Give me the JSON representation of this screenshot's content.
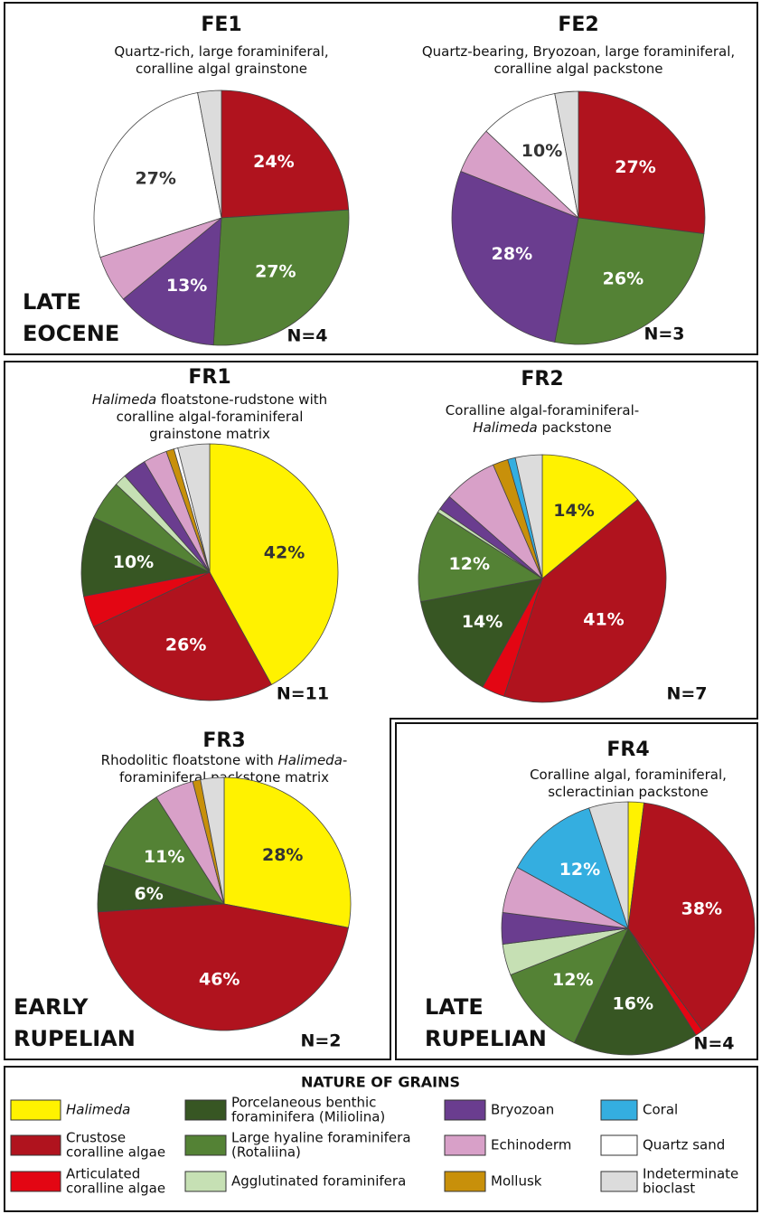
{
  "legend": {
    "title": "NATURE OF GRAINS",
    "items": [
      {
        "label": [
          "Halimeda"
        ],
        "italic": true,
        "color": "#fff200"
      },
      {
        "label": [
          "Crustose",
          "coralline algae"
        ],
        "color": "#b0131e"
      },
      {
        "label": [
          "Articulated",
          "coralline algae"
        ],
        "color": "#e30613"
      },
      {
        "label": [
          "Porcelaneous benthic",
          "foraminifera (Miliolina)"
        ],
        "color": "#375623"
      },
      {
        "label": [
          "Large hyaline foraminifera",
          "(Rotaliina)"
        ],
        "color": "#548235"
      },
      {
        "label": [
          "Agglutinated foraminifera"
        ],
        "color": "#c6e0b4"
      },
      {
        "label": [
          "Bryozoan"
        ],
        "color": "#6a3d8f"
      },
      {
        "label": [
          "Echinoderm"
        ],
        "color": "#d8a0c8"
      },
      {
        "label": [
          "Mollusk"
        ],
        "color": "#c8900a"
      },
      {
        "label": [
          "Coral"
        ],
        "color": "#34aee0"
      },
      {
        "label": [
          "Quartz sand"
        ],
        "color": "#ffffff"
      },
      {
        "label": [
          "Indeterminate",
          "bioclast"
        ],
        "color": "#dcdcdc"
      }
    ]
  },
  "chart_data": [
    {
      "type": "pie",
      "title": "FE1",
      "subtitle": [
        [
          {
            "text": "Quartz-rich, large foraminiferal,"
          }
        ],
        [
          {
            "text": "coralline algal grainstone"
          }
        ]
      ],
      "note": "N=4",
      "era": [
        "LATE",
        "EOCENE"
      ],
      "values": [
        null,
        24,
        null,
        null,
        27,
        null,
        13,
        6,
        null,
        null,
        27,
        3
      ],
      "value_labels": [
        null,
        "24%",
        null,
        null,
        "27%",
        null,
        "13%",
        null,
        null,
        null,
        "27%",
        null
      ]
    },
    {
      "type": "pie",
      "title": "FE2",
      "subtitle": [
        [
          {
            "text": "Quartz-bearing, Bryozoan, large foraminiferal,"
          }
        ],
        [
          {
            "text": "coralline algal  packstone"
          }
        ]
      ],
      "note": "N=3",
      "values": [
        null,
        27,
        null,
        null,
        26,
        null,
        28,
        6,
        null,
        null,
        10,
        3
      ],
      "value_labels": [
        null,
        "27%",
        null,
        null,
        "26%",
        null,
        "28%",
        null,
        null,
        null,
        "10%",
        null
      ]
    },
    {
      "type": "pie",
      "title": "FR1",
      "subtitle": [
        [
          {
            "text": "Halimeda",
            "italic": true
          },
          {
            "text": " floatstone-rudstone with"
          }
        ],
        [
          {
            "text": "coralline algal-foraminiferal"
          }
        ],
        [
          {
            "text": "grainstone matrix"
          }
        ]
      ],
      "note": "N=11",
      "values": [
        42,
        26,
        4,
        10,
        5,
        1.5,
        3,
        3,
        1,
        null,
        0.5,
        4
      ],
      "value_labels": [
        "42%",
        "26%",
        null,
        "10%",
        null,
        null,
        null,
        null,
        null,
        null,
        null,
        null
      ]
    },
    {
      "type": "pie",
      "title": "FR2",
      "subtitle": [
        [
          {
            "text": "Coralline algal-foraminiferal-"
          }
        ],
        [
          {
            "text": "Halimeda",
            "italic": true
          },
          {
            "text": " packstone"
          }
        ]
      ],
      "note": "N=7",
      "values": [
        14,
        41,
        3,
        14,
        12,
        0.5,
        2,
        7,
        2,
        1,
        null,
        3.5
      ],
      "value_labels": [
        "14%",
        "41%",
        null,
        "14%",
        "12%",
        null,
        null,
        null,
        null,
        null,
        null,
        null
      ]
    },
    {
      "type": "pie",
      "title": "FR3",
      "subtitle": [
        [
          {
            "text": "Rhodolitic floatstone with "
          },
          {
            "text": "Halimeda",
            "italic": true
          },
          {
            "text": "-"
          }
        ],
        [
          {
            "text": "foraminiferal packstone matrix"
          }
        ]
      ],
      "note": "N=2",
      "era": [
        "EARLY",
        "RUPELIAN"
      ],
      "values": [
        28,
        46,
        null,
        6,
        11,
        null,
        null,
        5,
        1,
        null,
        null,
        3
      ],
      "value_labels": [
        "28%",
        "46%",
        null,
        "6%",
        "11%",
        null,
        null,
        null,
        null,
        null,
        null,
        null
      ]
    },
    {
      "type": "pie",
      "title": "FR4",
      "subtitle": [
        [
          {
            "text": "Coralline algal, foraminiferal,"
          }
        ],
        [
          {
            "text": "scleractinian packstone"
          }
        ]
      ],
      "note": "N=4",
      "era": [
        "LATE",
        "RUPELIAN"
      ],
      "values": [
        2,
        38,
        1,
        16,
        12,
        4,
        4,
        6,
        0,
        12,
        null,
        5
      ],
      "value_labels": [
        null,
        "38%",
        null,
        "16%",
        "12%",
        null,
        null,
        null,
        null,
        "12%",
        null,
        null
      ]
    }
  ]
}
